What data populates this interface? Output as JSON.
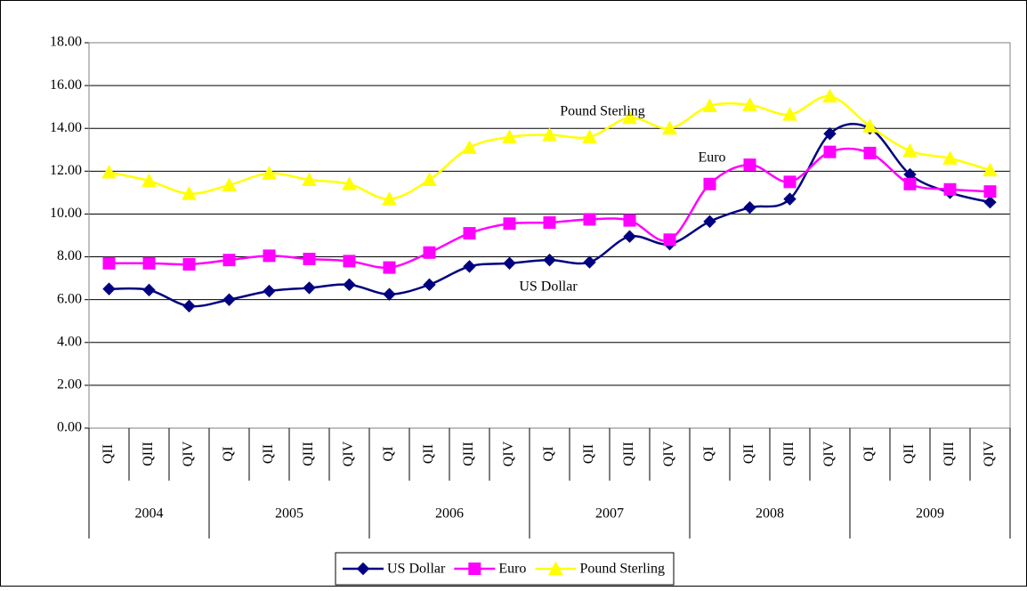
{
  "chart_data": {
    "type": "line",
    "category_groups": [
      {
        "label": "2004",
        "categories": [
          "QII",
          "QIII",
          "QIV"
        ]
      },
      {
        "label": "2005",
        "categories": [
          "QI",
          "QII",
          "QIII",
          "QIV"
        ]
      },
      {
        "label": "2006",
        "categories": [
          "QI",
          "QII",
          "QIII",
          "QIV"
        ]
      },
      {
        "label": "2007",
        "categories": [
          "QI",
          "QII",
          "QIII",
          "QIV"
        ]
      },
      {
        "label": "2008",
        "categories": [
          "QI",
          "QII",
          "QIII",
          "QIV"
        ]
      },
      {
        "label": "2009",
        "categories": [
          "QI",
          "QII",
          "QIII",
          "QIV"
        ]
      }
    ],
    "series": [
      {
        "name": "US Dollar",
        "color": "#000080",
        "marker": "diamond",
        "values": [
          6.5,
          6.45,
          5.7,
          6.0,
          6.4,
          6.55,
          6.7,
          6.25,
          6.7,
          7.55,
          7.7,
          7.85,
          7.75,
          8.95,
          8.6,
          9.65,
          10.3,
          10.7,
          13.75,
          14.0,
          11.85,
          11.0,
          10.55
        ]
      },
      {
        "name": "Euro",
        "color": "#ff00ff",
        "marker": "square",
        "values": [
          7.7,
          7.7,
          7.65,
          7.85,
          8.05,
          7.9,
          7.8,
          7.5,
          8.2,
          9.1,
          9.55,
          9.6,
          9.75,
          9.7,
          8.8,
          11.4,
          12.3,
          11.5,
          12.9,
          12.85,
          11.4,
          11.15,
          11.05
        ]
      },
      {
        "name": "Pound Sterling",
        "color": "#ffff00",
        "marker": "triangle",
        "values": [
          11.95,
          11.55,
          10.95,
          11.35,
          11.9,
          11.6,
          11.4,
          10.7,
          11.6,
          13.1,
          13.6,
          13.7,
          13.6,
          14.5,
          14.0,
          15.05,
          15.1,
          14.65,
          15.5,
          14.1,
          12.95,
          12.6,
          12.05
        ]
      }
    ],
    "annotations": [
      "Pound Sterling",
      "Euro",
      "US Dollar"
    ],
    "ylim": [
      0,
      18
    ],
    "yticks": [
      {
        "value": 0,
        "label": "0.00"
      },
      {
        "value": 2,
        "label": "2.00"
      },
      {
        "value": 4,
        "label": "4.00"
      },
      {
        "value": 6,
        "label": "6.00"
      },
      {
        "value": 8,
        "label": "8.00"
      },
      {
        "value": 10,
        "label": "10.00"
      },
      {
        "value": 12,
        "label": "12.00"
      },
      {
        "value": 14,
        "label": "14.00"
      },
      {
        "value": 16,
        "label": "16.00"
      },
      {
        "value": 18,
        "label": "18.00"
      }
    ],
    "grid": true,
    "legend": "bottom"
  }
}
